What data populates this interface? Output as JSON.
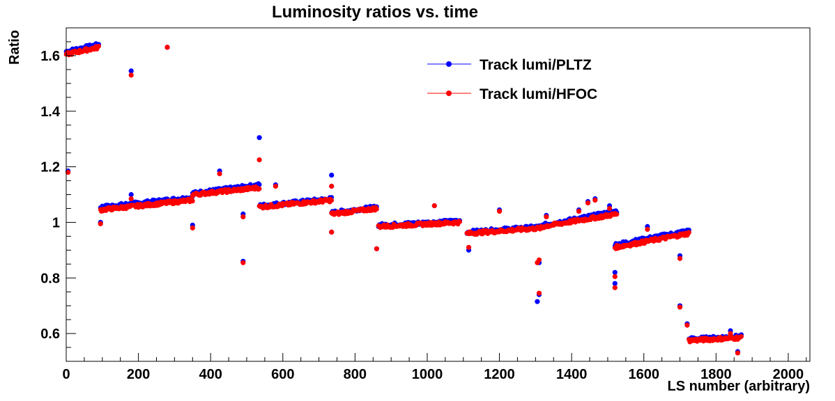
{
  "chart_data": {
    "type": "scatter",
    "title": "Luminosity ratios vs. time",
    "xlabel": "LS number (arbitrary)",
    "ylabel": "Ratio",
    "xlim": [
      0,
      2060
    ],
    "ylim": [
      0.5,
      1.7
    ],
    "x_ticks": [
      0,
      200,
      400,
      600,
      800,
      1000,
      1200,
      1400,
      1600,
      1800,
      2000
    ],
    "y_ticks": [
      0.6,
      0.8,
      1,
      1.2,
      1.4,
      1.6
    ],
    "x_tick_labels": [
      "0",
      "200",
      "400",
      "600",
      "800",
      "1000",
      "1200",
      "1400",
      "1600",
      "1800",
      "2000"
    ],
    "y_tick_labels": [
      "0.6",
      "0.8",
      "1",
      "1.2",
      "1.4",
      "1.6"
    ],
    "grid": false,
    "legend_position": "top-right",
    "series": [
      {
        "name": "Track lumi/PLTZ",
        "color": "#0000ff",
        "segments": [
          [
            0,
            90,
            1.615,
            1.64
          ],
          [
            95,
            350,
            1.055,
            1.09
          ],
          [
            350,
            535,
            1.105,
            1.135
          ],
          [
            535,
            735,
            1.06,
            1.085
          ],
          [
            735,
            860,
            1.035,
            1.055
          ],
          [
            865,
            1090,
            0.99,
            1.005
          ],
          [
            1110,
            1320,
            0.965,
            0.985
          ],
          [
            1320,
            1525,
            0.99,
            1.04
          ],
          [
            1520,
            1725,
            0.92,
            0.97
          ],
          [
            1725,
            1870,
            0.58,
            0.59
          ]
        ],
        "outliers": [
          [
            5,
            1.185
          ],
          [
            95,
            1.0
          ],
          [
            180,
            1.545
          ],
          [
            180,
            1.1
          ],
          [
            280,
            1.63
          ],
          [
            350,
            0.99
          ],
          [
            425,
            1.185
          ],
          [
            490,
            1.03
          ],
          [
            490,
            0.86
          ],
          [
            535,
            1.305
          ],
          [
            580,
            1.135
          ],
          [
            735,
            1.17
          ],
          [
            735,
            1.13
          ],
          [
            735,
            0.965
          ],
          [
            860,
            0.905
          ],
          [
            1020,
            1.06
          ],
          [
            1115,
            0.9
          ],
          [
            1200,
            1.045
          ],
          [
            1305,
            0.715
          ],
          [
            1310,
            0.74
          ],
          [
            1310,
            0.855
          ],
          [
            1330,
            1.025
          ],
          [
            1420,
            1.045
          ],
          [
            1445,
            1.075
          ],
          [
            1465,
            1.085
          ],
          [
            1505,
            1.06
          ],
          [
            1520,
            0.82
          ],
          [
            1520,
            0.78
          ],
          [
            1610,
            0.985
          ],
          [
            1700,
            0.88
          ],
          [
            1700,
            0.7
          ],
          [
            1720,
            0.635
          ],
          [
            1840,
            0.61
          ],
          [
            1860,
            0.535
          ]
        ]
      },
      {
        "name": "Track lumi/HFOC",
        "color": "#ff0000",
        "segments": [
          [
            0,
            90,
            1.605,
            1.63
          ],
          [
            95,
            350,
            1.045,
            1.08
          ],
          [
            350,
            535,
            1.1,
            1.125
          ],
          [
            535,
            735,
            1.055,
            1.08
          ],
          [
            735,
            860,
            1.03,
            1.05
          ],
          [
            865,
            1090,
            0.985,
            1.0
          ],
          [
            1110,
            1320,
            0.96,
            0.98
          ],
          [
            1320,
            1525,
            0.985,
            1.03
          ],
          [
            1520,
            1725,
            0.91,
            0.96
          ],
          [
            1725,
            1870,
            0.575,
            0.585
          ]
        ],
        "outliers": [
          [
            5,
            1.18
          ],
          [
            95,
            0.995
          ],
          [
            180,
            1.53
          ],
          [
            180,
            1.085
          ],
          [
            280,
            1.63
          ],
          [
            350,
            0.98
          ],
          [
            425,
            1.175
          ],
          [
            490,
            1.02
          ],
          [
            490,
            0.855
          ],
          [
            535,
            1.225
          ],
          [
            580,
            1.13
          ],
          [
            735,
            1.13
          ],
          [
            735,
            0.965
          ],
          [
            860,
            0.905
          ],
          [
            1020,
            1.06
          ],
          [
            1115,
            0.91
          ],
          [
            1200,
            1.04
          ],
          [
            1305,
            0.855
          ],
          [
            1310,
            0.745
          ],
          [
            1310,
            0.865
          ],
          [
            1330,
            1.02
          ],
          [
            1420,
            1.04
          ],
          [
            1445,
            1.07
          ],
          [
            1465,
            1.08
          ],
          [
            1505,
            1.05
          ],
          [
            1520,
            0.805
          ],
          [
            1520,
            0.765
          ],
          [
            1610,
            0.975
          ],
          [
            1700,
            0.87
          ],
          [
            1700,
            0.695
          ],
          [
            1720,
            0.63
          ],
          [
            1840,
            0.6
          ],
          [
            1860,
            0.53
          ]
        ]
      }
    ]
  }
}
